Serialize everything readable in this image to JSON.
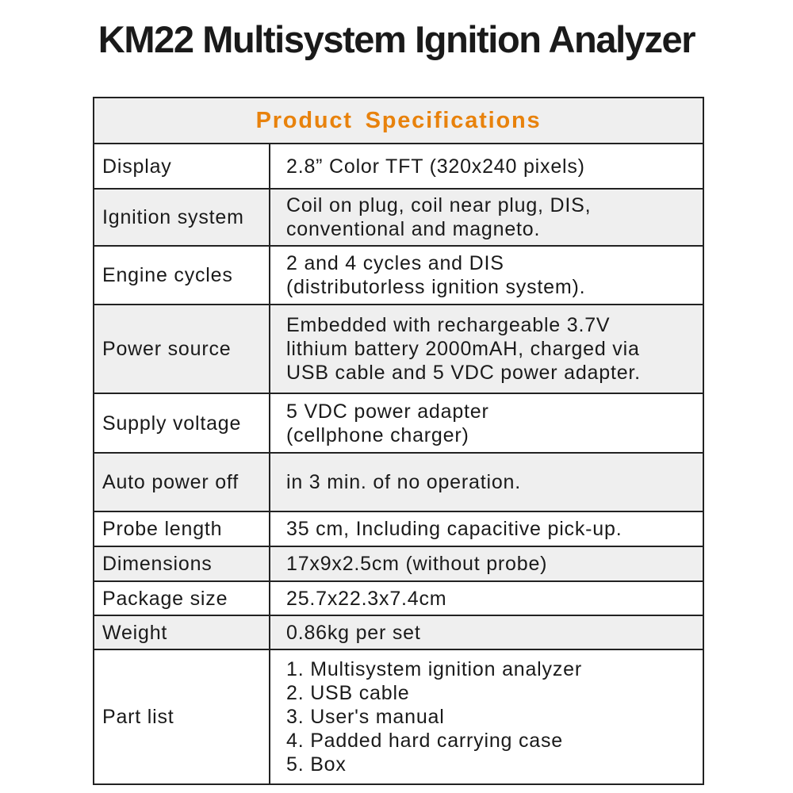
{
  "title": "KM22 Multisystem Ignition Analyzer",
  "colors": {
    "header_text": "#e8820c",
    "row_alt": "#efefef",
    "border": "#222222"
  },
  "table": {
    "header": "Product  Specifications",
    "rows": [
      {
        "label": "Display",
        "lines": [
          "2.8” Color TFT (320x240 pixels)"
        ]
      },
      {
        "label": "Ignition system",
        "lines": [
          "Coil on plug, coil near plug, DIS,",
          "conventional and magneto."
        ]
      },
      {
        "label": "Engine cycles",
        "lines": [
          "2 and 4 cycles and DIS",
          "(distributorless ignition system)."
        ]
      },
      {
        "label": "Power source",
        "lines": [
          "Embedded with rechargeable 3.7V",
          "lithium battery 2000mAH, charged via",
          "USB cable and 5 VDC power adapter."
        ]
      },
      {
        "label": "Supply voltage",
        "lines": [
          "5 VDC power adapter",
          "(cellphone charger)"
        ]
      },
      {
        "label": "Auto power off",
        "lines": [
          "in 3 min. of no operation."
        ]
      },
      {
        "label": "Probe length",
        "lines": [
          "35 cm, Including capacitive pick-up."
        ]
      },
      {
        "label": "Dimensions",
        "lines": [
          "17x9x2.5cm (without probe)"
        ]
      },
      {
        "label": "Package size",
        "lines": [
          "25.7x22.3x7.4cm"
        ]
      },
      {
        "label": "Weight",
        "lines": [
          "0.86kg per set"
        ]
      },
      {
        "label": "Part list",
        "lines": [
          "1. Multisystem ignition analyzer",
          "2. USB cable",
          "3. User's manual",
          "4. Padded hard carrying case",
          "5. Box"
        ]
      }
    ]
  }
}
